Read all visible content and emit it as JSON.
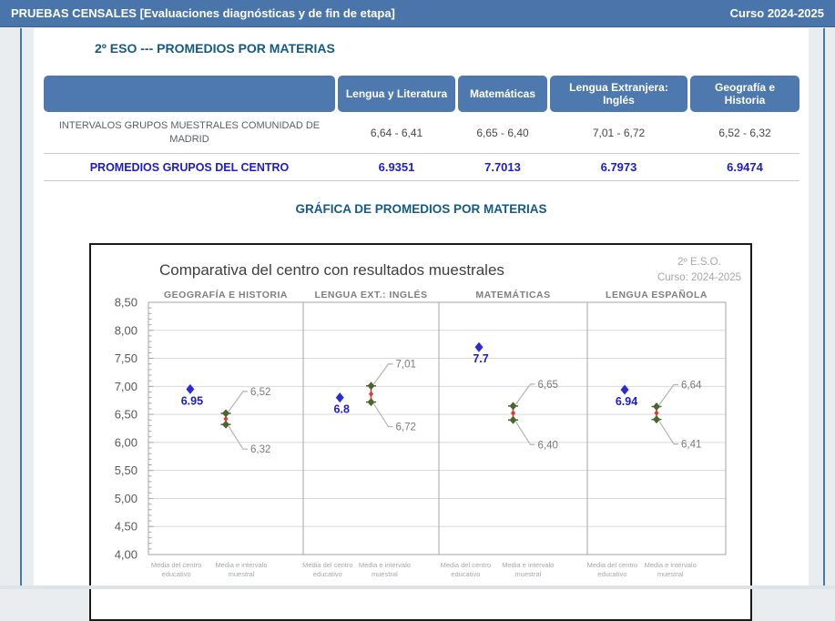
{
  "window": {
    "header_title": "PRUEBAS CENSALES [Evaluaciones diagnósticas y de fin de etapa]",
    "header_course": "Curso 2024-2025"
  },
  "section": {
    "title": "2º ESO --- PROMEDIOS POR MATERIAS",
    "chart_title": "GRÁFICA DE PROMEDIOS POR MATERIAS"
  },
  "table": {
    "columns": [
      "Lengua y Literatura",
      "Matemáticas",
      "Lengua Extranjera: Inglés",
      "Geografía e Historia"
    ],
    "rows": [
      {
        "label": "INTERVALOS GRUPOS MUESTRALES COMUNIDAD DE MADRID",
        "values": [
          "6,64 - 6,41",
          "6,65 - 6,40",
          "7,01 - 6,72",
          "6,52 - 6,32"
        ]
      },
      {
        "label": "PROMEDIOS GRUPOS DEL CENTRO",
        "values": [
          "6.9351",
          "7.7013",
          "6.7973",
          "6.9474"
        ]
      }
    ]
  },
  "chart_data": {
    "type": "scatter",
    "title": "Comparativa del centro con resultados muestrales",
    "meta": [
      "2º E.S.O.",
      "Curso: 2024-2025"
    ],
    "ylim": [
      4.0,
      8.5
    ],
    "y_major_step": 0.5,
    "y_minor_step": 0.1,
    "grid": true,
    "y_tick_labels": [
      "8,50",
      "8,00",
      "7,50",
      "7,00",
      "6,50",
      "6,00",
      "5,50",
      "5,00",
      "4,50",
      "4,00"
    ],
    "x_category_labels": [
      [
        "Media del centro",
        "educativo"
      ],
      [
        "Media e intervalo",
        "muestral"
      ]
    ],
    "series": [
      {
        "name": "Media del centro educativo",
        "marker": "blue-diamond"
      },
      {
        "name": "Media e intervalo muestral",
        "marker": "green-interval"
      }
    ],
    "panels": [
      {
        "title": "GEOGRAFÍA E HISTORIA",
        "center_mean": 6.95,
        "center_label": "6.95",
        "interval_high": 6.52,
        "interval_low": 6.32,
        "interval_high_label": "6,52",
        "interval_low_label": "6,32"
      },
      {
        "title": "LENGUA EXT.: INGLÉS",
        "center_mean": 6.8,
        "center_label": "6.8",
        "interval_high": 7.01,
        "interval_low": 6.72,
        "interval_high_label": "7,01",
        "interval_low_label": "6,72"
      },
      {
        "title": "MATEMÁTICAS",
        "center_mean": 7.7,
        "center_label": "7.7",
        "interval_high": 6.65,
        "interval_low": 6.4,
        "interval_high_label": "6,65",
        "interval_low_label": "6,40"
      },
      {
        "title": "LENGUA ESPAÑOLA",
        "center_mean": 6.94,
        "center_label": "6.94",
        "interval_high": 6.64,
        "interval_low": 6.41,
        "interval_high_label": "6,64",
        "interval_low_label": "6,41"
      }
    ],
    "colors": {
      "center_point": "#2b2bd0",
      "center_label": "#1b1bd0",
      "interval_end": "#4e642e",
      "interval_line": "#c04545",
      "interval_mid": "#cc3f3f",
      "callout_line": "#b3b3b3",
      "callout_label": "#7a7a7a",
      "grid": "#d9d9d9",
      "panel_border": "#a6a6a6",
      "tick_label": "#595959",
      "panel_title": "#7f7f7f",
      "category_label": "#a3a8ad",
      "title": "#3f3f3f",
      "meta": "#a6a6a6"
    }
  },
  "theme": {
    "header_bg": "#4a75ab",
    "table_header_bg": "#4d79ae",
    "section_title_color": "#155a82",
    "promedios_color": "#1d1dc2"
  }
}
